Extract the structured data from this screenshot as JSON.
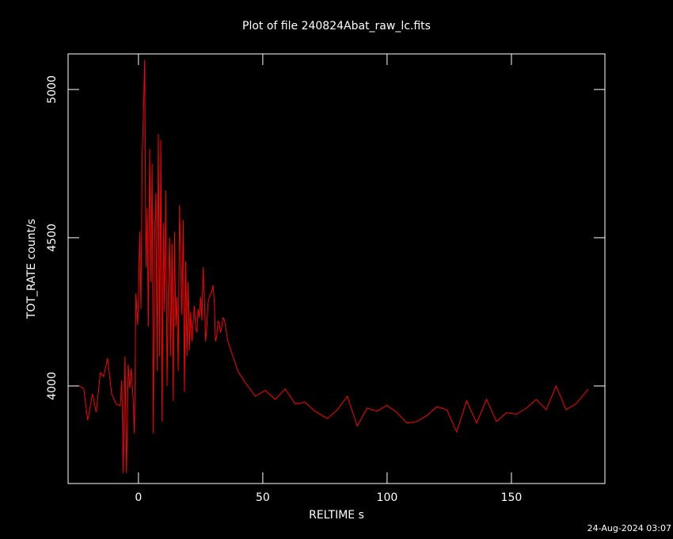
{
  "chart_data": {
    "type": "line",
    "title": "Plot of file 240824Abat_raw_lc.fits",
    "x_label": "RELTIME  s",
    "y_label": "TOT_RATE  count/s",
    "timestamp": "24-Aug-2024 03:07",
    "xlim": [
      -28.3,
      187.6
    ],
    "ylim": [
      3671,
      5120
    ],
    "xticks": [
      0,
      50,
      100,
      150
    ],
    "yticks": [
      4000,
      4500,
      5000
    ],
    "series": [
      {
        "color": "#ff0000",
        "x": [
          -23.9,
          -22,
          -20.4,
          -18.5,
          -17,
          -15.3,
          -14,
          -12.4,
          -10.8,
          -8.9,
          -7.3,
          -6.7,
          -6.1,
          -5.4,
          -4.8,
          -4.1,
          -3.5,
          -2.9,
          -2.2,
          -1.6,
          -1.0,
          -0.3,
          0,
          0.5,
          1,
          1.5,
          2,
          2.5,
          3,
          3.5,
          4,
          4.5,
          5,
          5.5,
          6,
          6.5,
          7,
          7.5,
          8,
          8.5,
          9,
          9.5,
          10,
          10.5,
          11,
          11.5,
          12,
          12.5,
          13,
          13.5,
          14,
          14.5,
          15,
          15.5,
          16,
          16.5,
          17,
          17.5,
          18,
          18.5,
          19,
          19.5,
          20,
          20.5,
          21,
          21.5,
          22,
          22.5,
          23,
          23.5,
          24,
          24.5,
          25,
          25.5,
          26,
          26.5,
          27,
          27.5,
          28,
          28.5,
          29,
          29.5,
          30,
          30.5,
          31,
          31.5,
          32,
          32.5,
          33,
          33.5,
          34,
          34.5,
          35,
          36,
          38,
          40,
          43,
          47,
          51,
          55,
          59,
          63,
          67,
          71,
          76,
          80,
          84,
          88,
          92,
          96,
          100,
          104,
          108,
          112,
          116,
          120,
          124,
          128,
          132,
          136,
          140,
          144,
          148,
          152,
          156,
          160,
          164,
          168,
          172,
          176,
          181
        ],
        "values": [
          4000,
          3992,
          3885,
          3973,
          3912,
          4045,
          4032,
          4094,
          3973,
          3939,
          3933,
          4019,
          3706,
          4099,
          3706,
          4072,
          3992,
          4059,
          3963,
          3840,
          4313,
          4206,
          4300,
          4520,
          4260,
          4780,
          4920,
          5100,
          4400,
          4600,
          4200,
          4800,
          4350,
          4750,
          3840,
          4500,
          4650,
          4050,
          4850,
          4100,
          4830,
          3880,
          4550,
          4250,
          4660,
          4000,
          4320,
          4500,
          4100,
          4480,
          3950,
          4520,
          4200,
          4300,
          4050,
          4610,
          4400,
          4240,
          4560,
          3980,
          4420,
          4100,
          4350,
          4120,
          4250,
          4150,
          4220,
          4270,
          4200,
          4180,
          4260,
          4230,
          4300,
          4220,
          4400,
          4300,
          4150,
          4200,
          4280,
          4300,
          4310,
          4320,
          4340,
          4280,
          4150,
          4170,
          4220,
          4210,
          4180,
          4200,
          4230,
          4225,
          4200,
          4150,
          4100,
          4050,
          4011,
          3965,
          3985,
          3955,
          3990,
          3940,
          3945,
          3915,
          3890,
          3920,
          3965,
          3865,
          3925,
          3915,
          3935,
          3910,
          3875,
          3880,
          3900,
          3930,
          3920,
          3845,
          3950,
          3875,
          3955,
          3880,
          3910,
          3905,
          3925,
          3955,
          3920,
          4000,
          3920,
          3940,
          3990
        ]
      }
    ]
  }
}
